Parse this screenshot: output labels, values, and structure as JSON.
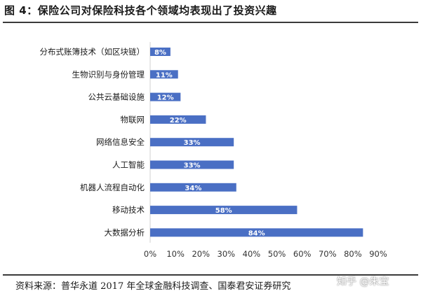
{
  "figure_title": "图 4：保险公司对保险科技各个领域均表现出了投资兴趣",
  "source": "资料来源：普华永道 2017 年全球金融科技调查、国泰君安证券研究",
  "watermark": "知乎 @朱宝",
  "chart_data": {
    "type": "bar",
    "orientation": "horizontal",
    "title": "",
    "xlabel": "",
    "ylabel": "",
    "categories": [
      "分布式账簿技术（如区块链）",
      "生物识别与身份管理",
      "公共云基础设施",
      "物联网",
      "网络信息安全",
      "人工智能",
      "机器人流程自动化",
      "移动技术",
      "大数据分析"
    ],
    "values": [
      8,
      11,
      12,
      22,
      33,
      33,
      34,
      58,
      84
    ],
    "data_labels": [
      "8%",
      "11%",
      "12%",
      "22%",
      "33%",
      "33%",
      "34%",
      "58%",
      "84%"
    ],
    "xlim": [
      0,
      90
    ],
    "xticks": [
      "0%",
      "10%",
      "20%",
      "30%",
      "40%",
      "50%",
      "60%",
      "70%",
      "80%",
      "90%"
    ],
    "grid": false,
    "colors": {
      "bar": "#4a6fc4",
      "label_text": "#ffffff",
      "axis": "#d0d0d0"
    }
  }
}
